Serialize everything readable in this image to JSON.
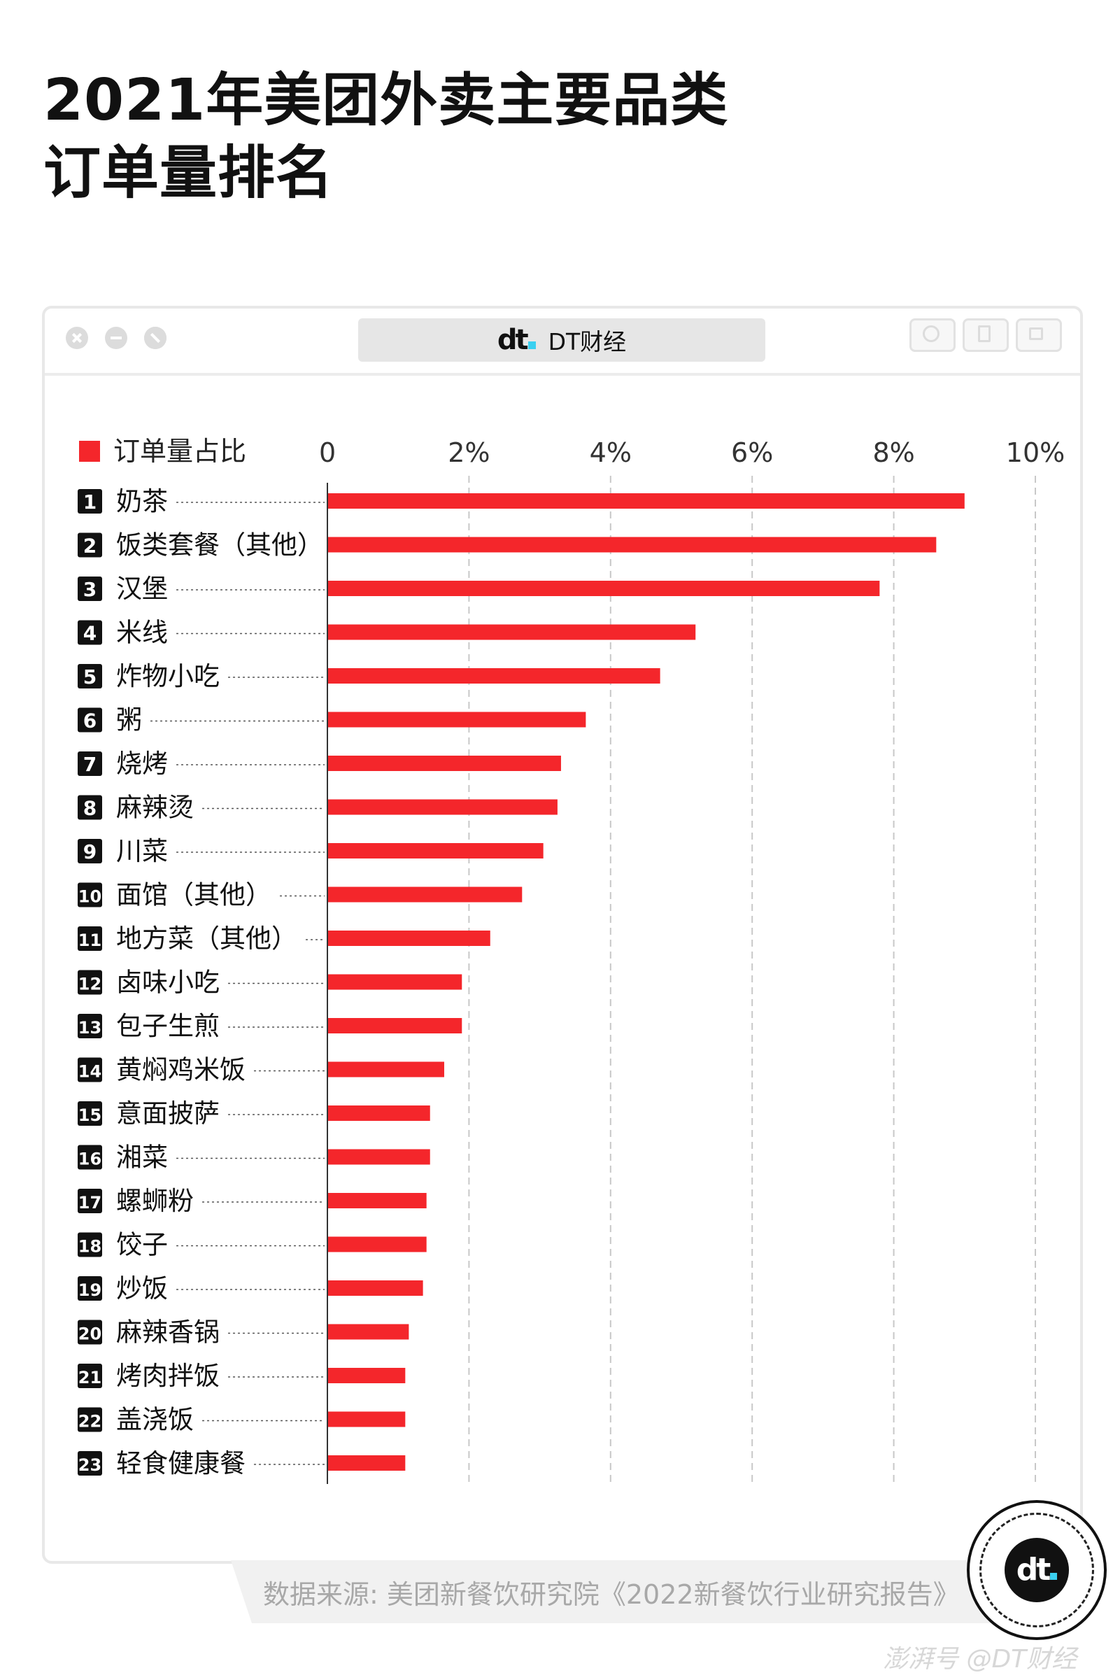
{
  "title_lines": [
    "2021年美团外卖主要品类",
    "订单量排名"
  ],
  "window": {
    "brand_logo": "dt",
    "brand_name": "DT财经"
  },
  "chart_data": {
    "type": "bar",
    "orientation": "horizontal",
    "legend": "订单量占比",
    "legend_color": "#f4262b",
    "bar_color": "#f4262b",
    "xlim": [
      0,
      10
    ],
    "ticks": [
      0,
      2,
      4,
      6,
      8,
      10
    ],
    "tick_labels": [
      "0",
      "2%",
      "4%",
      "6%",
      "8%",
      "10%"
    ],
    "grid": true,
    "categories": [
      "奶茶",
      "饭类套餐（其他）",
      "汉堡",
      "米线",
      "炸物小吃",
      "粥",
      "烧烤",
      "麻辣烫",
      "川菜",
      "面馆（其他）",
      "地方菜（其他）",
      "卤味小吃",
      "包子生煎",
      "黄焖鸡米饭",
      "意面披萨",
      "湘菜",
      "螺蛳粉",
      "饺子",
      "炒饭",
      "麻辣香锅",
      "烤肉拌饭",
      "盖浇饭",
      "轻食健康餐"
    ],
    "ranks": [
      "1",
      "2",
      "3",
      "4",
      "5",
      "6",
      "7",
      "8",
      "9",
      "10",
      "11",
      "12",
      "13",
      "14",
      "15",
      "16",
      "17",
      "18",
      "19",
      "20",
      "21",
      "22",
      "23"
    ],
    "values": [
      9.0,
      8.6,
      7.8,
      5.2,
      4.7,
      3.65,
      3.3,
      3.25,
      3.05,
      2.75,
      2.3,
      1.9,
      1.9,
      1.65,
      1.45,
      1.45,
      1.4,
      1.4,
      1.35,
      1.15,
      1.1,
      1.1,
      1.1
    ]
  },
  "source_text": "数据来源: 美团新餐饮研究院《2022新餐饮行业研究报告》",
  "badge_logo": "dt",
  "footer_text": "澎湃号 @DT财经"
}
